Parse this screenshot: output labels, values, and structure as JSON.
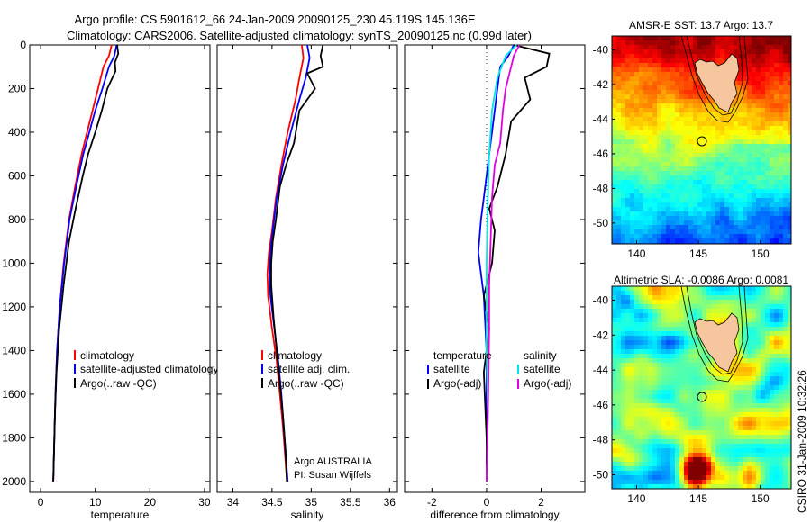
{
  "header": {
    "line1": "Argo profile: CS 5901612_66 24-Jan-2009 20090125_230 45.119S 145.136E",
    "line2": "Climatology: CARS2006. Satellite-adjusted climatology: synTS_20090125.nc (0.99d later)"
  },
  "side_label": "CSIRO 31-Jan-2009 10:32:26",
  "colors": {
    "climatology": "#ff0000",
    "satellite": "#0000ff",
    "argo": "#000000",
    "cyan": "#00e5e5",
    "magenta": "#e000e0"
  },
  "chart_data": [
    {
      "type": "line",
      "xlabel": "temperature",
      "ylabel": "",
      "xlim": [
        -2,
        31
      ],
      "ylim": [
        2050,
        0
      ],
      "x_ticks": [
        0,
        10,
        20,
        30
      ],
      "y_ticks": [
        0,
        200,
        400,
        600,
        800,
        1000,
        1200,
        1400,
        1600,
        1800,
        2000
      ],
      "legend": [
        "climatology",
        "satellite-adjusted climatology",
        "Argo(..raw -QC)"
      ],
      "series": [
        {
          "name": "climatology",
          "color": "climatology",
          "x": [
            13.0,
            12.5,
            11.5,
            10.5,
            9.5,
            8.5,
            7.5,
            6.3,
            5.2,
            4.2,
            3.5,
            3.0,
            2.7,
            2.5,
            2.4,
            2.3
          ],
          "y": [
            0,
            50,
            100,
            200,
            300,
            400,
            500,
            650,
            800,
            1000,
            1200,
            1400,
            1600,
            1800,
            1900,
            2000
          ]
        },
        {
          "name": "satellite-adjusted climatology",
          "color": "satellite",
          "x": [
            13.9,
            13.5,
            12.5,
            11.3,
            10.0,
            8.9,
            7.8,
            6.5,
            5.3,
            4.3,
            3.5,
            3.0,
            2.7,
            2.5,
            2.4,
            2.3
          ],
          "y": [
            0,
            50,
            100,
            200,
            300,
            400,
            500,
            650,
            800,
            1000,
            1200,
            1400,
            1600,
            1800,
            1900,
            2000
          ]
        },
        {
          "name": "Argo(..raw -QC)",
          "color": "argo",
          "x": [
            14.0,
            14.2,
            13.6,
            13.7,
            12.2,
            11.2,
            10.0,
            8.7,
            7.7,
            6.4,
            5.2,
            4.2,
            3.4,
            2.9,
            2.6,
            2.4,
            2.3
          ],
          "y": [
            0,
            40,
            80,
            120,
            200,
            300,
            400,
            500,
            600,
            750,
            900,
            1100,
            1300,
            1500,
            1700,
            1900,
            2000
          ]
        }
      ]
    },
    {
      "type": "line",
      "xlabel": "salinity",
      "ylabel": "",
      "xlim": [
        33.8,
        36.1
      ],
      "ylim": [
        2050,
        0
      ],
      "x_ticks": [
        34,
        34.5,
        35,
        35.5,
        36
      ],
      "legend": [
        "climatology",
        "satellite adj. clim.",
        "Argo(..raw -QC)"
      ],
      "annotations": [
        "Argo AUSTRALIA",
        "PI: Susan Wijffels"
      ],
      "series": [
        {
          "name": "climatology",
          "color": "climatology",
          "x": [
            34.88,
            34.9,
            34.85,
            34.8,
            34.7,
            34.62,
            34.55,
            34.5,
            34.46,
            34.44,
            34.45,
            34.5,
            34.56,
            34.6,
            34.64,
            34.67,
            34.69
          ],
          "y": [
            0,
            60,
            150,
            250,
            400,
            550,
            700,
            850,
            950,
            1050,
            1150,
            1300,
            1450,
            1600,
            1750,
            1900,
            2000
          ]
        },
        {
          "name": "satellite adj. clim.",
          "color": "satellite",
          "x": [
            34.95,
            34.98,
            34.93,
            34.85,
            34.74,
            34.64,
            34.56,
            34.51,
            34.48,
            34.47,
            34.48,
            34.53,
            34.58,
            34.62,
            34.65,
            34.68,
            34.7
          ],
          "y": [
            0,
            60,
            150,
            250,
            400,
            550,
            700,
            850,
            950,
            1050,
            1150,
            1300,
            1450,
            1600,
            1750,
            1900,
            2000
          ]
        },
        {
          "name": "Argo(..raw -QC)",
          "color": "argo",
          "x": [
            35.15,
            35.12,
            35.15,
            34.95,
            35.05,
            34.85,
            34.78,
            34.68,
            34.6,
            34.55,
            34.51,
            34.49,
            34.49,
            34.52,
            34.56,
            34.6,
            34.64,
            34.67,
            34.69
          ],
          "y": [
            0,
            50,
            100,
            130,
            200,
            300,
            450,
            550,
            650,
            800,
            900,
            1000,
            1100,
            1250,
            1400,
            1550,
            1700,
            1850,
            2000
          ]
        }
      ]
    },
    {
      "type": "line",
      "xlabel": "difference from climatology",
      "ylabel": "",
      "xlim": [
        -3,
        3.6
      ],
      "ylim": [
        2050,
        0
      ],
      "x_ticks": [
        -2,
        0,
        2
      ],
      "legend": [
        "temperature",
        "satellite",
        "Argo(-adj)",
        "salinity",
        "satellite",
        "Argo(-adj)"
      ],
      "series": [
        {
          "name": "temperature satellite",
          "color": "satellite",
          "x": [
            1.0,
            0.8,
            0.5,
            0.4,
            0.3,
            0.2,
            0.1,
            0.0,
            -0.1,
            -0.2,
            -0.3,
            -0.1,
            0.0,
            0.0,
            0.0
          ],
          "y": [
            0,
            50,
            100,
            200,
            300,
            400,
            500,
            600,
            700,
            800,
            950,
            1150,
            1400,
            1700,
            2000
          ]
        },
        {
          "name": "temperature Argo(-adj)",
          "color": "argo",
          "x": [
            1.0,
            2.3,
            2.2,
            1.4,
            1.6,
            0.9,
            0.7,
            0.4,
            0.1,
            0.3,
            0.2,
            -0.1,
            0.1,
            -0.1,
            0.0,
            0.0
          ],
          "y": [
            0,
            40,
            100,
            150,
            250,
            350,
            500,
            650,
            750,
            850,
            1000,
            1150,
            1300,
            1500,
            1800,
            2000
          ]
        },
        {
          "name": "salinity satellite",
          "color": "cyan",
          "x": [
            1.1,
            0.7,
            0.4,
            0.2,
            0.1,
            0.05,
            0.0,
            0.0,
            0.05,
            0.0
          ],
          "y": [
            0,
            50,
            150,
            300,
            500,
            700,
            1000,
            1400,
            1700,
            2000
          ]
        },
        {
          "name": "salinity Argo(-adj)",
          "color": "magenta",
          "x": [
            1.2,
            1.0,
            0.9,
            0.7,
            0.6,
            0.5,
            0.3,
            0.2,
            0.15,
            0.1,
            0.1,
            0.05,
            0.0
          ],
          "y": [
            0,
            50,
            100,
            200,
            300,
            450,
            550,
            700,
            900,
            1100,
            1300,
            1700,
            2000
          ]
        }
      ]
    },
    {
      "type": "heatmap",
      "title": "AMSR-E SST: 13.7 Argo: 13.7",
      "xlim": [
        138,
        152.5
      ],
      "ylim": [
        -51.2,
        -39.2
      ],
      "x_ticks": [
        140,
        145,
        150
      ],
      "y_ticks": [
        -40,
        -42,
        -44,
        -46,
        -48,
        -50
      ],
      "marker": {
        "lon": 145.136,
        "lat": -45.119
      },
      "colormap": "jet"
    },
    {
      "type": "heatmap",
      "title": "Altimetric SLA: -0.0086 Argo: 0.0081",
      "xlim": [
        138,
        152.5
      ],
      "ylim": [
        -50.8,
        -39.2
      ],
      "x_ticks": [
        140,
        145,
        150
      ],
      "y_ticks": [
        -40,
        -42,
        -44,
        -46,
        -48,
        -50
      ],
      "marker": {
        "lon": 145.136,
        "lat": -45.119
      },
      "colormap": "jet"
    }
  ]
}
